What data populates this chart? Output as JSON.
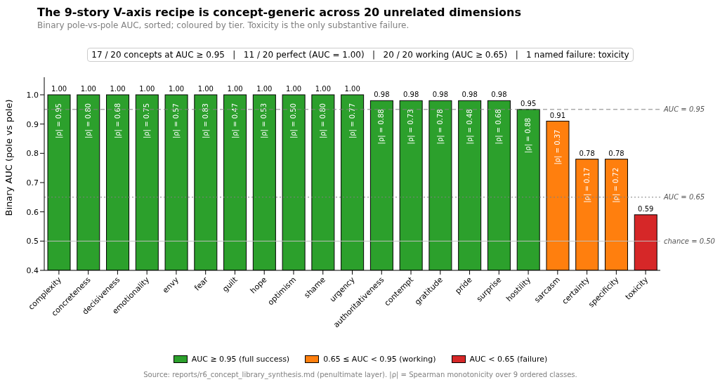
{
  "chart_data": {
    "type": "bar",
    "title": "The 9-story V-axis recipe is concept-generic across 20 unrelated dimensions",
    "subtitle": "Binary pole-vs-pole AUC, sorted; coloured by tier. Toxicity is the only substantive failure.",
    "ylabel": "Binary AUC (pole vs pole)",
    "categories": [
      "complexity",
      "concreteness",
      "decisiveness",
      "emotionality",
      "envy",
      "fear",
      "guilt",
      "hope",
      "optimism",
      "shame",
      "urgency",
      "authoritativeness",
      "contempt",
      "gratitude",
      "pride",
      "surprise",
      "hostility",
      "sarcasm",
      "certainty",
      "specificity",
      "toxicity"
    ],
    "stacked": true,
    "series": [
      {
        "name": "AUC ≥ 0.95 (full success)",
        "color": "#2ca02c",
        "values": [
          1.0,
          1.0,
          1.0,
          1.0,
          1.0,
          1.0,
          1.0,
          1.0,
          1.0,
          1.0,
          1.0,
          0.98,
          0.98,
          0.98,
          0.98,
          0.98,
          0.95,
          null,
          null,
          null,
          null
        ],
        "value_labels": [
          "1.00",
          "1.00",
          "1.00",
          "1.00",
          "1.00",
          "1.00",
          "1.00",
          "1.00",
          "1.00",
          "1.00",
          "1.00",
          "0.98",
          "0.98",
          "0.98",
          "0.98",
          "0.98",
          "0.95",
          null,
          null,
          null,
          null
        ]
      },
      {
        "name": "0.65 ≤ AUC < 0.95 (working)",
        "color": "#ff7f0e",
        "values": [
          null,
          null,
          null,
          null,
          null,
          null,
          null,
          null,
          null,
          null,
          null,
          null,
          null,
          null,
          null,
          null,
          null,
          0.91,
          0.78,
          0.78,
          null
        ],
        "value_labels": [
          null,
          null,
          null,
          null,
          null,
          null,
          null,
          null,
          null,
          null,
          null,
          null,
          null,
          null,
          null,
          null,
          null,
          "0.91",
          "0.78",
          "0.78",
          null
        ]
      },
      {
        "name": "AUC < 0.65 (failure)",
        "color": "#d62728",
        "values": [
          null,
          null,
          null,
          null,
          null,
          null,
          null,
          null,
          null,
          null,
          null,
          null,
          null,
          null,
          null,
          null,
          null,
          null,
          null,
          null,
          0.59
        ],
        "value_labels": [
          null,
          null,
          null,
          null,
          null,
          null,
          null,
          null,
          null,
          null,
          null,
          null,
          null,
          null,
          null,
          null,
          null,
          null,
          null,
          null,
          "0.59"
        ]
      }
    ],
    "ylim": [
      0.4,
      1.06
    ],
    "yticks": [
      0.4,
      0.5,
      0.6,
      0.7,
      0.8,
      0.9,
      {
        "value": 1,
        "label": "1.0"
      }
    ],
    "ref_lines": [
      {
        "axis": "y",
        "value": 0.95,
        "label": "AUC = 0.95",
        "color": "#808080",
        "line_style": "dashed"
      },
      {
        "axis": "y",
        "value": 0.65,
        "label": "AUC = 0.65",
        "color": "#808080",
        "line_style": "dotted"
      },
      {
        "axis": "y",
        "value": 0.5,
        "label": "chance = 0.50",
        "color": "#c0c0c0",
        "line_style": "solid"
      }
    ],
    "legend": "bottom",
    "annotations": [
      "17 / 20 concepts at AUC ≥ 0.95   |   11 / 20 perfect (AUC = 1.00)   |   20 / 20 working (AUC ≥ 0.65)   |   1 named failure: toxicity",
      "Source: reports/r6_concept_library_synthesis.md (penultimate layer).  |ρ| = Spearman monotonicity over 9 ordered classes.",
      {
        "text": "|ρ| = 0.95",
        "x": "complexity",
        "y": 1.0
      },
      {
        "text": "|ρ| = 0.80",
        "x": "concreteness",
        "y": 1.0
      },
      {
        "text": "|ρ| = 0.68",
        "x": "decisiveness",
        "y": 1.0
      },
      {
        "text": "|ρ| = 0.75",
        "x": "emotionality",
        "y": 1.0
      },
      {
        "text": "|ρ| = 0.57",
        "x": "envy",
        "y": 1.0
      },
      {
        "text": "|ρ| = 0.83",
        "x": "fear",
        "y": 1.0
      },
      {
        "text": "|ρ| = 0.47",
        "x": "guilt",
        "y": 1.0
      },
      {
        "text": "|ρ| = 0.53",
        "x": "hope",
        "y": 1.0
      },
      {
        "text": "|ρ| = 0.50",
        "x": "optimism",
        "y": 1.0
      },
      {
        "text": "|ρ| = 0.80",
        "x": "shame",
        "y": 1.0
      },
      {
        "text": "|ρ| = 0.77",
        "x": "urgency",
        "y": 1.0
      },
      {
        "text": "|ρ| = 0.88",
        "x": "authoritativeness",
        "y": 0.98
      },
      {
        "text": "|ρ| = 0.73",
        "x": "contempt",
        "y": 0.98
      },
      {
        "text": "|ρ| = 0.78",
        "x": "gratitude",
        "y": 0.98
      },
      {
        "text": "|ρ| = 0.48",
        "x": "pride",
        "y": 0.98
      },
      {
        "text": "|ρ| = 0.68",
        "x": "surprise",
        "y": 0.98
      },
      {
        "text": "|ρ| = 0.88",
        "x": "hostility",
        "y": 0.95
      },
      {
        "text": "|ρ| = 0.37",
        "x": "sarcasm",
        "y": 0.91
      },
      {
        "text": "|ρ| = 0.17",
        "x": "certainty",
        "y": 0.78
      },
      {
        "text": "|ρ| = 0.72",
        "x": "specificity",
        "y": 0.78
      }
    ]
  }
}
